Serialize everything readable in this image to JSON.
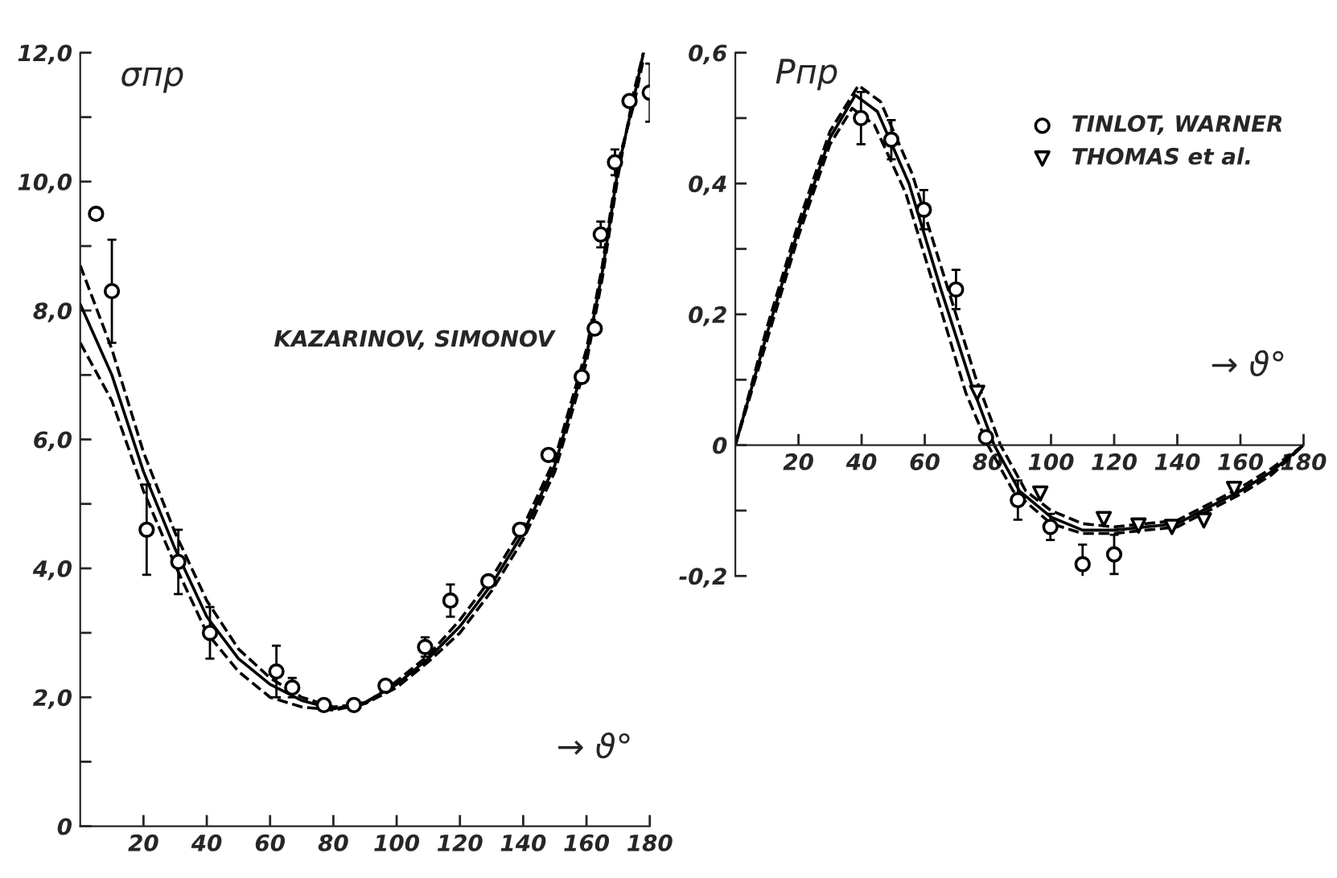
{
  "chart_data": [
    {
      "type": "scatter",
      "ylabel": "σпр",
      "xlabel": "→ ϑ°",
      "xlim": [
        0,
        180
      ],
      "ylim": [
        0,
        12
      ],
      "xticks": [
        20,
        40,
        60,
        80,
        100,
        120,
        140,
        160,
        180
      ],
      "yticks": [
        {
          "value": 0,
          "label": "0"
        },
        {
          "value": 1,
          "label": null
        },
        {
          "value": 2,
          "label": "2,0"
        },
        {
          "value": 3,
          "label": null
        },
        {
          "value": 4,
          "label": "4,0"
        },
        {
          "value": 5,
          "label": null
        },
        {
          "value": 6,
          "label": "6,0"
        },
        {
          "value": 7,
          "label": null
        },
        {
          "value": 8,
          "label": "8,0"
        },
        {
          "value": 9,
          "label": null
        },
        {
          "value": 10,
          "label": "10,0"
        },
        {
          "value": 11,
          "label": null
        },
        {
          "value": 12,
          "label": "12,0"
        }
      ],
      "grid": false,
      "legend": false,
      "annotations": [
        "KAZARINOV, SIMONOV"
      ],
      "series": [
        {
          "marker": "circle",
          "color": "#000000",
          "x": [
            5,
            10,
            21,
            31,
            41,
            62,
            67,
            77,
            86.5,
            96.5,
            109,
            117,
            129,
            139,
            148,
            158.5,
            162.6,
            164.5,
            169,
            173.6,
            180
          ],
          "values": [
            9.5,
            8.3,
            4.6,
            4.1,
            3.0,
            2.4,
            2.15,
            1.88,
            1.88,
            2.18,
            2.78,
            3.5,
            3.8,
            4.6,
            5.76,
            6.97,
            7.72,
            9.18,
            10.3,
            11.25,
            11.38
          ],
          "errors": [
            null,
            0.8,
            0.7,
            0.5,
            0.4,
            0.4,
            0.15,
            null,
            null,
            null,
            0.15,
            0.25,
            null,
            null,
            null,
            null,
            null,
            0.2,
            0.2,
            null,
            0.45
          ]
        },
        {
          "type": "line",
          "line_style": "solid",
          "color": "#000000",
          "x": [
            0,
            10,
            20,
            30,
            40,
            50,
            60,
            70,
            80,
            90,
            100,
            110,
            120,
            130,
            140,
            150,
            160,
            165,
            170,
            175,
            178
          ],
          "values": [
            8.1,
            7.0,
            5.5,
            4.3,
            3.25,
            2.6,
            2.2,
            1.95,
            1.82,
            1.92,
            2.2,
            2.6,
            3.1,
            3.75,
            4.55,
            5.6,
            7.3,
            8.6,
            10.2,
            11.3,
            12.0
          ]
        },
        {
          "type": "line",
          "line_style": "dashed",
          "color": "#000000",
          "x": [
            0,
            10,
            20,
            30,
            40,
            50,
            60,
            70,
            80,
            90,
            100,
            110,
            120,
            130,
            140,
            150,
            160,
            165,
            170,
            175,
            178
          ],
          "values": [
            8.7,
            7.4,
            5.8,
            4.55,
            3.5,
            2.75,
            2.3,
            2.0,
            1.85,
            1.9,
            2.15,
            2.55,
            3.0,
            3.65,
            4.45,
            5.5,
            7.2,
            8.5,
            10.1,
            11.4,
            12.0
          ]
        },
        {
          "type": "line",
          "line_style": "dashed",
          "color": "#000000",
          "x": [
            0,
            10,
            20,
            30,
            40,
            50,
            60,
            70,
            80,
            90,
            100,
            110,
            120,
            130,
            140,
            150,
            160,
            165,
            170,
            175,
            178
          ],
          "values": [
            7.5,
            6.6,
            5.2,
            4.05,
            3.0,
            2.4,
            2.0,
            1.85,
            1.8,
            1.9,
            2.25,
            2.65,
            3.2,
            3.85,
            4.65,
            5.7,
            7.4,
            8.7,
            10.3,
            11.2,
            11.9
          ]
        }
      ]
    },
    {
      "type": "scatter",
      "ylabel": "Pпр",
      "xlabel": "→ ϑ°",
      "xlim": [
        0,
        180
      ],
      "ylim": [
        -0.2,
        0.6
      ],
      "xticks": [
        20,
        40,
        60,
        80,
        100,
        120,
        140,
        160,
        180
      ],
      "yticks": [
        {
          "value": -0.2,
          "label": "-0,2"
        },
        {
          "value": -0.1,
          "label": null
        },
        {
          "value": 0,
          "label": "0"
        },
        {
          "value": 0.1,
          "label": null
        },
        {
          "value": 0.2,
          "label": "0,2"
        },
        {
          "value": 0.3,
          "label": null
        },
        {
          "value": 0.4,
          "label": "0,4"
        },
        {
          "value": 0.5,
          "label": null
        },
        {
          "value": 0.6,
          "label": "0,6"
        }
      ],
      "grid": false,
      "legend": "top right",
      "series": [
        {
          "name": "TINLOT, WARNER",
          "marker": "circle",
          "color": "#000000",
          "x": [
            39.8,
            49.4,
            59.7,
            69.9,
            79.4,
            89.5,
            99.8,
            110,
            120
          ],
          "values": [
            0.5,
            0.467,
            0.36,
            0.238,
            0.012,
            -0.084,
            -0.125,
            -0.182,
            -0.167
          ],
          "errors": [
            0.04,
            0.03,
            0.03,
            0.03,
            null,
            0.03,
            0.02,
            0.03,
            0.03
          ]
        },
        {
          "name": "THOMAS et al.",
          "marker": "triangle",
          "color": "#000000",
          "x": [
            76.6,
            96.6,
            116.7,
            127.7,
            138.3,
            148.4,
            158
          ],
          "values": [
            0.08,
            -0.074,
            -0.113,
            -0.123,
            -0.125,
            -0.115,
            -0.067
          ]
        },
        {
          "type": "line",
          "line_style": "solid",
          "color": "#000000",
          "x": [
            0,
            10,
            20,
            30,
            38,
            45,
            55,
            65,
            75,
            82,
            90,
            100,
            110,
            120,
            140,
            160,
            170,
            180
          ],
          "values": [
            0,
            0.17,
            0.33,
            0.47,
            0.535,
            0.51,
            0.4,
            0.24,
            0.09,
            0,
            -0.07,
            -0.11,
            -0.13,
            -0.13,
            -0.12,
            -0.07,
            -0.04,
            0
          ]
        },
        {
          "type": "line",
          "line_style": "dashed",
          "color": "#000000",
          "x": [
            0,
            10,
            20,
            30,
            39,
            46,
            56,
            66,
            76,
            84,
            92,
            100,
            110,
            120,
            140,
            160,
            170,
            180
          ],
          "values": [
            0,
            0.18,
            0.34,
            0.48,
            0.55,
            0.525,
            0.415,
            0.26,
            0.105,
            0,
            -0.07,
            -0.1,
            -0.12,
            -0.125,
            -0.115,
            -0.065,
            -0.035,
            0
          ]
        },
        {
          "type": "line",
          "line_style": "dashed",
          "color": "#000000",
          "x": [
            0,
            10,
            20,
            30,
            37,
            44,
            54,
            64,
            73,
            80,
            88,
            100,
            110,
            120,
            140,
            160,
            170,
            180
          ],
          "values": [
            0,
            0.16,
            0.32,
            0.46,
            0.515,
            0.49,
            0.385,
            0.225,
            0.08,
            0,
            -0.07,
            -0.12,
            -0.135,
            -0.135,
            -0.125,
            -0.075,
            -0.045,
            0
          ]
        }
      ]
    }
  ]
}
